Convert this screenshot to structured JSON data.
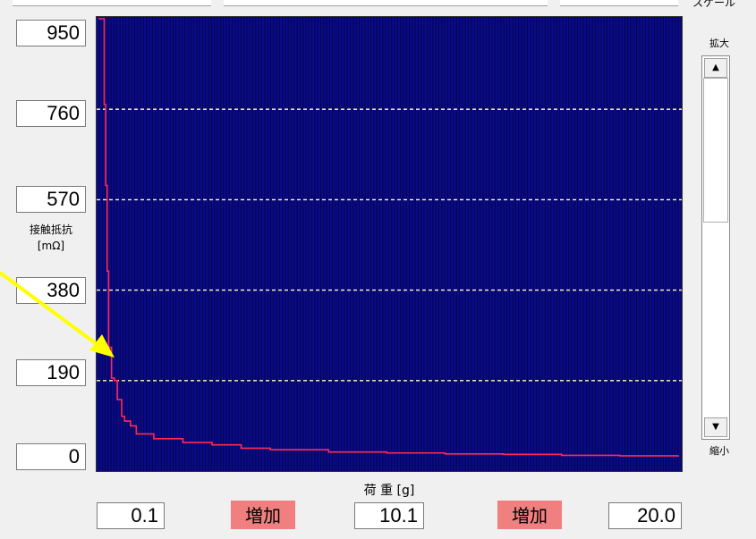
{
  "window": {
    "scale_title": "スケール"
  },
  "y_axis": {
    "label_line1": "接触抵抗",
    "label_line2": "[mΩ]",
    "ticks": [
      "950",
      "760",
      "570",
      "380",
      "190",
      "0"
    ]
  },
  "x_axis": {
    "label": "荷 重 [g]",
    "values": [
      "0.1",
      "10.1",
      "20.0"
    ]
  },
  "buttons": {
    "increase_left": "増加",
    "increase_right": "増加"
  },
  "zoom": {
    "zoom_in": "拡大",
    "zoom_out": "縮小"
  },
  "colors": {
    "plot_bg": "#0a0a8c",
    "curve": "#ff2a55",
    "grid_dash": "#ffffc0",
    "arrow": "#ffff00",
    "button": "#f08080"
  },
  "chart_data": {
    "type": "line",
    "xlabel": "荷 重 [g]",
    "ylabel": "接触抵抗 [mΩ]",
    "xlim": [
      0.1,
      20.0
    ],
    "ylim": [
      0,
      950
    ],
    "grid_y": [
      190,
      380,
      570,
      760
    ],
    "series": [
      {
        "x": [
          0.1,
          0.2,
          0.3,
          0.35,
          0.4,
          0.45,
          0.55,
          0.65,
          0.75,
          0.9,
          1.0,
          1.2,
          1.4,
          2.0,
          3.0,
          4.0,
          5.0,
          6.0,
          8.0,
          10.0,
          12.0,
          14.0,
          16.0,
          18.0,
          20.0
        ],
        "y": [
          950,
          950,
          770,
          600,
          420,
          260,
          195,
          190,
          150,
          115,
          105,
          95,
          78,
          68,
          60,
          55,
          48,
          45,
          40,
          38,
          36,
          35,
          33,
          32,
          30
        ]
      }
    ]
  }
}
